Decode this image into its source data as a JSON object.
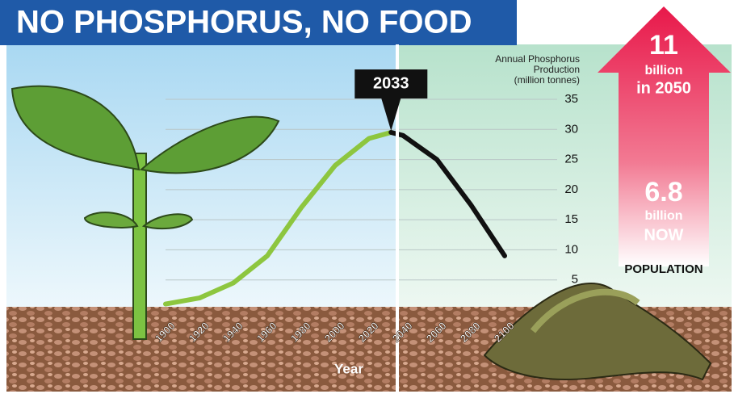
{
  "chart_data": {
    "type": "line",
    "title": "NO PHOSPHORUS, NO FOOD",
    "y_label": [
      "Annual Phosphorus",
      "Production",
      "(million tonnes)"
    ],
    "x_label": "Year",
    "x": [
      1900,
      1920,
      1940,
      1960,
      1980,
      2000,
      2020,
      2033,
      2040,
      2060,
      2080,
      2100
    ],
    "series": [
      {
        "color": "#8dc63f",
        "values": [
          1,
          2,
          4.5,
          9,
          17,
          24,
          28.5,
          29.5,
          null,
          null,
          null,
          null
        ]
      },
      {
        "color": "#111111",
        "values": [
          null,
          null,
          null,
          null,
          null,
          null,
          null,
          29.5,
          29,
          25,
          17.5,
          9
        ]
      }
    ],
    "xlim": [
      1900,
      2100
    ],
    "xticks": [
      1900,
      1920,
      1940,
      1960,
      1980,
      2000,
      2020,
      2040,
      2060,
      2080,
      2100
    ],
    "ylim": [
      0,
      35
    ],
    "yticks": [
      5,
      10,
      15,
      20,
      25,
      30,
      35
    ],
    "grid": true,
    "population": {
      "label": "POPULATION",
      "projected": {
        "value": 11,
        "lines": [
          "billion",
          "in 2050"
        ]
      },
      "current": {
        "value": 6.8,
        "lines": [
          "billion",
          "NOW"
        ]
      }
    }
  }
}
